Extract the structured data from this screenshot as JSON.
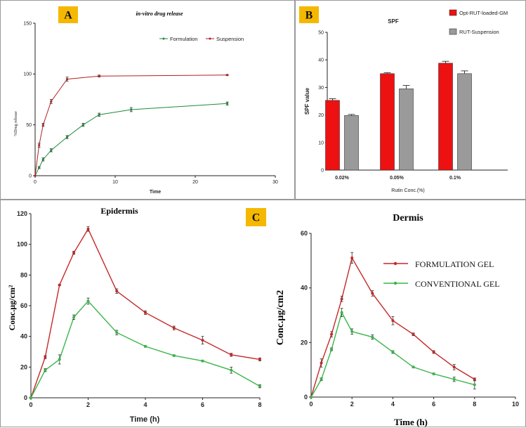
{
  "chart_data": [
    {
      "id": "A",
      "type": "line",
      "panel_label": "A",
      "title": "in-vitro drug release",
      "xlabel": "Time",
      "ylabel": "%Drug release",
      "xlim": [
        0,
        30
      ],
      "ylim": [
        0,
        150
      ],
      "xticks": [
        0,
        10,
        20,
        30
      ],
      "yticks": [
        0,
        50,
        100,
        150
      ],
      "legend_position": "top-right",
      "series": [
        {
          "name": "Formulation",
          "color": "#1f8a3a",
          "x": [
            0,
            0.5,
            1,
            2,
            4,
            6,
            8,
            12,
            24
          ],
          "y": [
            0,
            8,
            16,
            25,
            38,
            50,
            60,
            65,
            71
          ],
          "err": [
            0,
            1,
            1.5,
            1.5,
            1.5,
            1.5,
            1.5,
            2,
            1.5
          ]
        },
        {
          "name": "Suspension",
          "color": "#b22222",
          "x": [
            0,
            0.5,
            1,
            2,
            4,
            8,
            24
          ],
          "y": [
            0,
            30,
            50,
            73,
            95,
            98,
            99
          ],
          "err": [
            0,
            2,
            1.5,
            2,
            2,
            1,
            0.5
          ]
        }
      ]
    },
    {
      "id": "B",
      "type": "bar",
      "panel_label": "B",
      "title": "SPF",
      "xlabel": "Rutin Conc.(%)",
      "ylabel": "SPF value",
      "ylim": [
        0,
        50
      ],
      "yticks": [
        0,
        10,
        20,
        30,
        40,
        50
      ],
      "categories": [
        "0.02%",
        "0.05%",
        "0.1%"
      ],
      "legend_position": "top-right",
      "series": [
        {
          "name": "Opt-RUT-loaded-GM",
          "color": "#ee1111",
          "values": [
            25.3,
            35,
            38.8
          ],
          "err": [
            0.6,
            0.3,
            0.7
          ]
        },
        {
          "name": "RUT-Suspension",
          "color": "#9a9a9a",
          "values": [
            19.8,
            29.5,
            35
          ],
          "err": [
            0.4,
            1.2,
            1
          ]
        }
      ]
    },
    {
      "id": "C1",
      "type": "line",
      "panel_label": "C",
      "title": "Epidermis",
      "xlabel": "Time (h)",
      "ylabel": "Conc.µg/cm²",
      "xlim": [
        0,
        8
      ],
      "ylim": [
        0,
        120
      ],
      "xticks": [
        0,
        2,
        4,
        6,
        8
      ],
      "yticks": [
        0,
        20,
        40,
        60,
        80,
        100,
        120
      ],
      "series": [
        {
          "name": "FORMULATION GEL",
          "color": "#c62828",
          "x": [
            0,
            0.5,
            1,
            1.5,
            2,
            3,
            4,
            5,
            6,
            7,
            8
          ],
          "y": [
            0,
            26.5,
            73.5,
            94.5,
            110,
            69.5,
            55.5,
            45.5,
            37.5,
            28,
            25
          ],
          "err": [
            0,
            1,
            0.5,
            1,
            1.5,
            1.5,
            1.2,
            1.2,
            2.5,
            1,
            1
          ]
        },
        {
          "name": "CONVENTIONAL GEL",
          "color": "#3ab54a",
          "x": [
            0,
            0.5,
            1,
            1.5,
            2,
            3,
            4,
            5,
            6,
            7,
            8
          ],
          "y": [
            0,
            18,
            25,
            52.5,
            63,
            42.5,
            33.5,
            27.5,
            24,
            18,
            7.5
          ],
          "err": [
            0,
            1,
            3,
            1.5,
            2,
            1.5,
            0.5,
            0.5,
            0.5,
            2,
            1
          ]
        }
      ]
    },
    {
      "id": "C2",
      "type": "line",
      "title": "Dermis",
      "xlabel": "Time (h)",
      "ylabel": "Conc.µg/cm2",
      "xlim": [
        0,
        10
      ],
      "ylim": [
        0,
        60
      ],
      "xticks": [
        0,
        2,
        4,
        6,
        8,
        10
      ],
      "yticks": [
        0,
        20,
        40,
        60
      ],
      "legend_position": "top-right",
      "series": [
        {
          "name": "FORMULATION GEL",
          "color": "#c62828",
          "x": [
            0,
            0.5,
            1,
            1.5,
            2,
            3,
            4,
            5,
            6,
            7,
            8
          ],
          "y": [
            0,
            12.5,
            23,
            36,
            51,
            38,
            28,
            23,
            16.5,
            11,
            6.5
          ],
          "err": [
            0,
            1.5,
            1,
            1,
            2,
            1,
            1.5,
            0.5,
            0.5,
            1,
            0.5
          ]
        },
        {
          "name": "CONVENTIONAL GEL",
          "color": "#3ab54a",
          "x": [
            0,
            0.5,
            1,
            1.5,
            2,
            3,
            4,
            5,
            6,
            7,
            8
          ],
          "y": [
            0,
            6.5,
            17.5,
            31,
            24,
            22,
            16.5,
            11,
            8.5,
            6.5,
            4.5
          ],
          "err": [
            0,
            0.5,
            0.5,
            1.5,
            1,
            0.8,
            0.5,
            0.3,
            0.3,
            0.8,
            1.5
          ]
        }
      ]
    }
  ]
}
